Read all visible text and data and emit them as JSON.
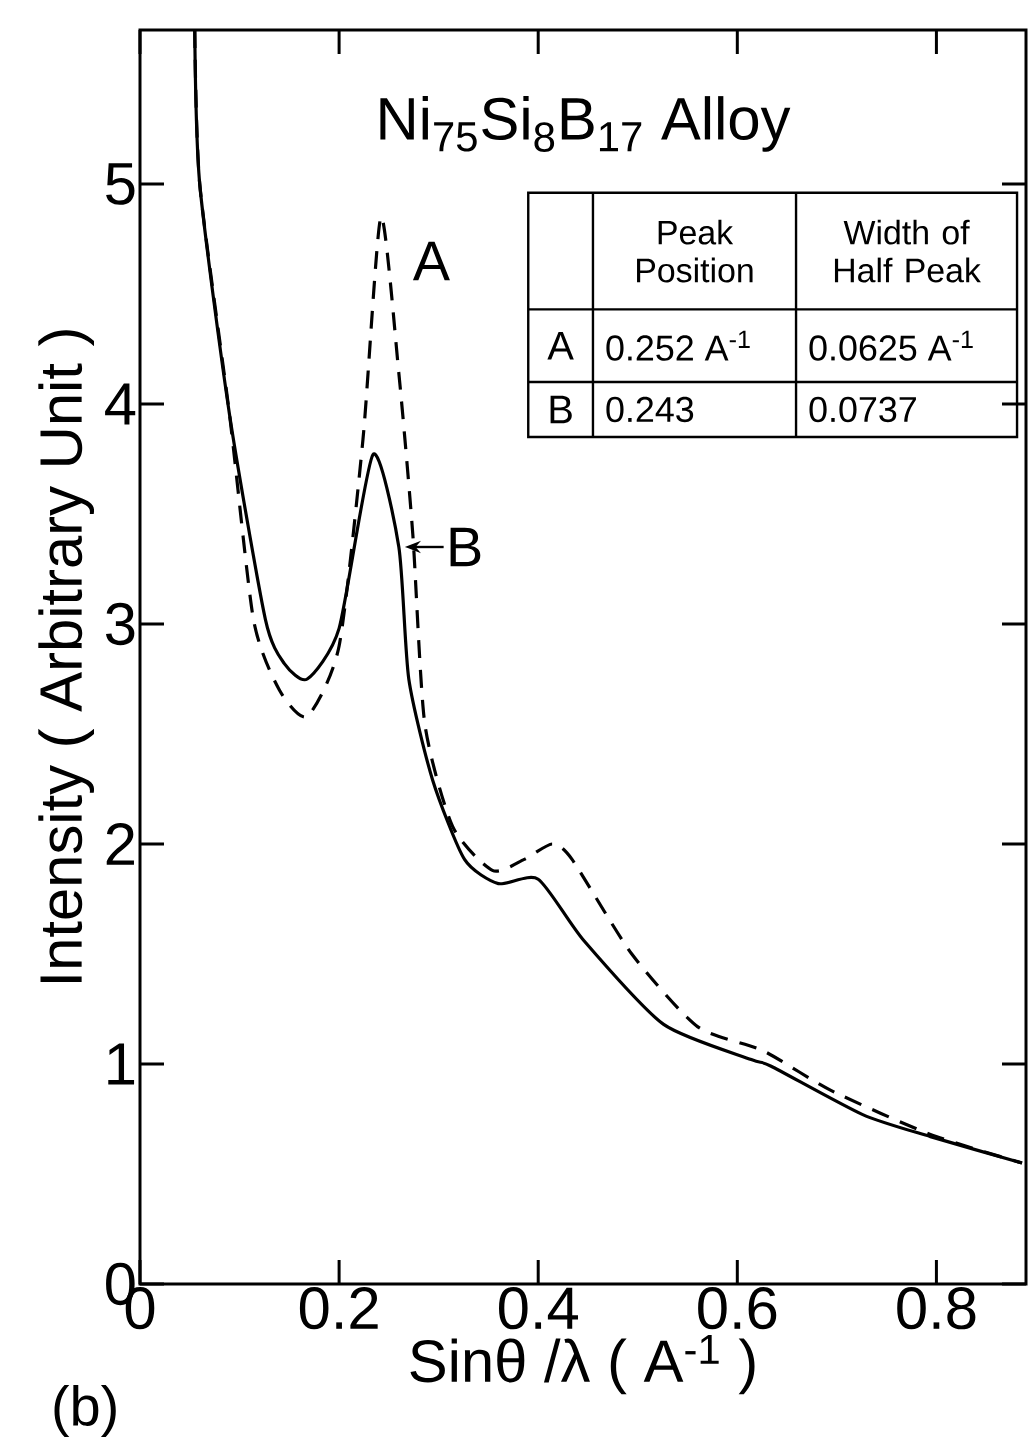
{
  "chart_data": {
    "type": "line",
    "title": "Ni$_{75}$Si$_{8}$B$_{17}$ Alloy",
    "xlabel": "Sinθ /λ  ( A$^{-1}$ )",
    "ylabel": "Intensity ( Arbitrary Unit )",
    "xlim": [
      0,
      0.89
    ],
    "ylim": [
      0,
      5.7
    ],
    "xticks": [
      0,
      0.2,
      0.4,
      0.6,
      0.8
    ],
    "yticks": [
      0,
      1,
      2,
      3,
      4,
      5
    ],
    "series": [
      {
        "name": "A",
        "color": "#000000",
        "line_style": "dashed",
        "x": [
          0.055,
          0.06,
          0.09,
          0.114,
          0.14,
          0.168,
          0.2,
          0.224,
          0.242,
          0.26,
          0.274,
          0.286,
          0.314,
          0.354,
          0.386,
          0.414,
          0.434,
          0.494,
          0.56,
          0.626,
          0.694,
          0.794,
          0.886
        ],
        "values": [
          5.7,
          5.0,
          3.95,
          3.02,
          2.7,
          2.58,
          2.9,
          3.84,
          4.85,
          4.14,
          3.41,
          2.55,
          2.08,
          1.88,
          1.93,
          2.0,
          1.93,
          1.5,
          1.17,
          1.06,
          0.88,
          0.68,
          0.55
        ]
      },
      {
        "name": "B",
        "color": "#000000",
        "line_style": "solid",
        "x": [
          0.055,
          0.06,
          0.09,
          0.126,
          0.145,
          0.168,
          0.2,
          0.234,
          0.26,
          0.27,
          0.294,
          0.326,
          0.36,
          0.4,
          0.446,
          0.526,
          0.614,
          0.634,
          0.726,
          0.794,
          0.886
        ],
        "values": [
          5.7,
          5.0,
          3.95,
          3.02,
          2.82,
          2.75,
          2.98,
          3.77,
          3.35,
          2.75,
          2.29,
          1.93,
          1.82,
          1.84,
          1.56,
          1.18,
          1.02,
          0.99,
          0.77,
          0.67,
          0.55
        ]
      }
    ],
    "annotations": [
      "Peak Position",
      "Width of Half Peak",
      "A",
      "0.252 A$^{-1}$",
      "0.0625 A$^{-1}$",
      "B",
      "0.243",
      "0.0737",
      "(b)"
    ]
  }
}
